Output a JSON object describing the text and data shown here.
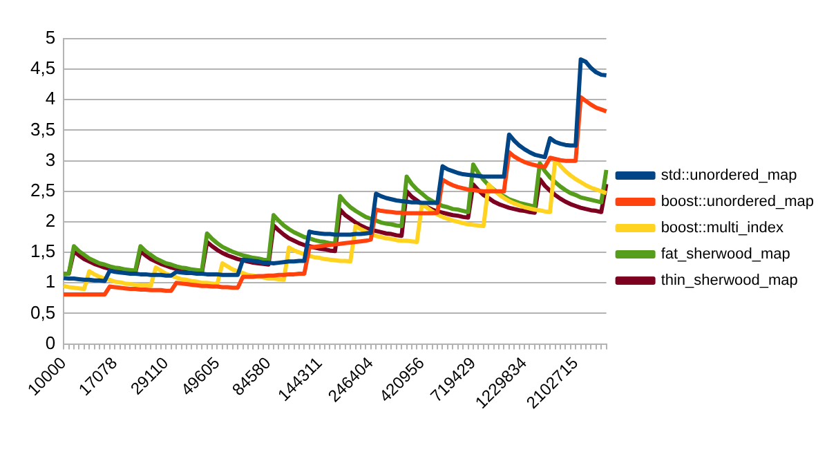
{
  "chart_data": {
    "type": "line",
    "categories": [
      "10000",
      null,
      null,
      null,
      null,
      null,
      null,
      null,
      null,
      null,
      "17078",
      null,
      null,
      null,
      null,
      null,
      null,
      null,
      null,
      null,
      "29110",
      null,
      null,
      null,
      null,
      null,
      null,
      null,
      null,
      null,
      "49605",
      null,
      null,
      null,
      null,
      null,
      null,
      null,
      null,
      null,
      "84580",
      null,
      null,
      null,
      null,
      null,
      null,
      null,
      null,
      null,
      "144311",
      null,
      null,
      null,
      null,
      null,
      null,
      null,
      null,
      null,
      "246404",
      null,
      null,
      null,
      null,
      null,
      null,
      null,
      null,
      null,
      "420956",
      null,
      null,
      null,
      null,
      null,
      null,
      null,
      null,
      null,
      "719429",
      null,
      null,
      null,
      null,
      null,
      null,
      null,
      null,
      null,
      "1229834",
      null,
      null,
      null,
      null,
      null,
      null,
      null,
      null,
      null,
      "2102715",
      null,
      null,
      null,
      null,
      null,
      null
    ],
    "series": [
      {
        "name": "std::unordered_map",
        "color": "#004586",
        "values": [
          1.08,
          1.07,
          1.07,
          1.06,
          1.05,
          1.05,
          1.04,
          1.04,
          1.03,
          1.2,
          1.18,
          1.17,
          1.16,
          1.15,
          1.15,
          1.14,
          1.14,
          1.13,
          1.13,
          1.13,
          1.12,
          1.12,
          1.18,
          1.17,
          1.16,
          1.16,
          1.15,
          1.15,
          1.14,
          1.14,
          1.14,
          1.13,
          1.13,
          1.13,
          1.13,
          1.38,
          1.37,
          1.36,
          1.35,
          1.33,
          1.33,
          1.32,
          1.33,
          1.34,
          1.35,
          1.35,
          1.36,
          1.36,
          1.84,
          1.82,
          1.81,
          1.8,
          1.8,
          1.79,
          1.79,
          1.79,
          1.79,
          1.8,
          1.8,
          1.81,
          1.82,
          2.46,
          2.42,
          2.39,
          2.37,
          2.35,
          2.34,
          2.33,
          2.32,
          2.32,
          2.31,
          2.31,
          2.31,
          2.31,
          2.91,
          2.86,
          2.83,
          2.8,
          2.78,
          2.77,
          2.76,
          2.75,
          2.74,
          2.74,
          2.74,
          2.74,
          2.74,
          3.43,
          3.33,
          3.25,
          3.19,
          3.14,
          3.1,
          3.08,
          3.06,
          3.37,
          3.31,
          3.28,
          3.26,
          3.25,
          3.25,
          4.66,
          4.62,
          4.52,
          4.45,
          4.41,
          4.4
        ]
      },
      {
        "name": "boost::unordered_map",
        "color": "#ff420e",
        "values": [
          0.81,
          0.81,
          0.81,
          0.81,
          0.81,
          0.81,
          0.81,
          0.81,
          0.81,
          0.94,
          0.93,
          0.92,
          0.91,
          0.9,
          0.9,
          0.89,
          0.89,
          0.88,
          0.88,
          0.88,
          0.87,
          0.87,
          1.0,
          0.99,
          0.98,
          0.97,
          0.96,
          0.95,
          0.95,
          0.94,
          0.94,
          0.93,
          0.93,
          0.92,
          0.92,
          1.1,
          1.1,
          1.1,
          1.11,
          1.11,
          1.12,
          1.12,
          1.13,
          1.13,
          1.14,
          1.14,
          1.15,
          1.15,
          1.58,
          1.59,
          1.6,
          1.61,
          1.62,
          1.63,
          1.64,
          1.65,
          1.66,
          1.67,
          1.68,
          1.69,
          1.71,
          2.2,
          2.18,
          2.17,
          2.16,
          2.15,
          2.15,
          2.14,
          2.14,
          2.14,
          2.14,
          2.14,
          2.14,
          2.15,
          2.69,
          2.64,
          2.6,
          2.57,
          2.55,
          2.53,
          2.52,
          2.51,
          2.5,
          2.5,
          2.5,
          2.5,
          2.5,
          3.14,
          3.07,
          3.02,
          2.98,
          2.95,
          2.93,
          2.91,
          2.9,
          3.05,
          3.03,
          3.01,
          3.0,
          3.0,
          3.0,
          4.04,
          3.98,
          3.92,
          3.87,
          3.84,
          3.81
        ]
      },
      {
        "name": "boost::multi_index",
        "color": "#ffd320",
        "values": [
          0.95,
          0.93,
          0.92,
          0.91,
          0.9,
          1.19,
          1.14,
          1.1,
          1.07,
          1.05,
          1.02,
          1.01,
          0.99,
          0.98,
          0.97,
          0.96,
          0.96,
          0.95,
          1.25,
          1.2,
          1.15,
          1.12,
          1.09,
          1.06,
          1.05,
          1.03,
          1.02,
          1.0,
          1.0,
          0.99,
          0.98,
          1.32,
          1.27,
          1.22,
          1.19,
          1.16,
          1.13,
          1.12,
          1.1,
          1.09,
          1.07,
          1.07,
          1.06,
          1.05,
          1.58,
          1.53,
          1.5,
          1.47,
          1.44,
          1.42,
          1.41,
          1.39,
          1.38,
          1.37,
          1.36,
          1.36,
          1.35,
          1.93,
          1.88,
          1.84,
          1.8,
          1.77,
          1.75,
          1.73,
          1.72,
          1.7,
          1.69,
          1.69,
          1.68,
          1.67,
          2.3,
          2.23,
          2.17,
          2.12,
          2.08,
          2.05,
          2.02,
          2.0,
          1.98,
          1.96,
          1.95,
          1.94,
          1.93,
          2.61,
          2.52,
          2.45,
          2.39,
          2.34,
          2.3,
          2.27,
          2.24,
          2.22,
          2.2,
          2.19,
          2.17,
          2.16,
          3.02,
          2.92,
          2.83,
          2.76,
          2.7,
          2.65,
          2.6,
          2.56,
          2.53,
          2.5,
          2.47
        ]
      },
      {
        "name": "fat_sherwood_map",
        "color": "#579d1c",
        "values": [
          1.15,
          1.15,
          1.6,
          1.52,
          1.46,
          1.4,
          1.36,
          1.32,
          1.3,
          1.27,
          1.25,
          1.24,
          1.22,
          1.21,
          1.2,
          1.6,
          1.52,
          1.46,
          1.4,
          1.36,
          1.32,
          1.3,
          1.27,
          1.25,
          1.24,
          1.22,
          1.21,
          1.2,
          1.81,
          1.72,
          1.65,
          1.59,
          1.55,
          1.51,
          1.48,
          1.45,
          1.43,
          1.41,
          1.4,
          1.38,
          1.37,
          2.11,
          2.02,
          1.94,
          1.88,
          1.83,
          1.79,
          1.75,
          1.73,
          1.7,
          1.68,
          1.67,
          1.65,
          1.64,
          2.42,
          2.32,
          2.24,
          2.18,
          2.13,
          2.08,
          2.05,
          2.02,
          1.99,
          1.97,
          1.96,
          1.94,
          1.93,
          2.74,
          2.62,
          2.53,
          2.46,
          2.39,
          2.34,
          2.3,
          2.26,
          2.24,
          2.21,
          2.2,
          2.18,
          2.16,
          2.94,
          2.8,
          2.69,
          2.6,
          2.53,
          2.46,
          2.42,
          2.37,
          2.34,
          2.31,
          2.29,
          2.27,
          2.25,
          2.96,
          2.83,
          2.73,
          2.65,
          2.58,
          2.52,
          2.47,
          2.44,
          2.4,
          2.38,
          2.36,
          2.34,
          2.32,
          2.85
        ]
      },
      {
        "name": "thin_sherwood_map",
        "color": "#7e0021",
        "values": [
          1.15,
          1.15,
          1.52,
          1.45,
          1.39,
          1.35,
          1.31,
          1.28,
          1.25,
          1.23,
          1.22,
          1.2,
          1.19,
          1.18,
          1.17,
          1.52,
          1.45,
          1.39,
          1.35,
          1.31,
          1.28,
          1.25,
          1.23,
          1.22,
          1.2,
          1.19,
          1.18,
          1.17,
          1.67,
          1.6,
          1.54,
          1.49,
          1.45,
          1.42,
          1.39,
          1.37,
          1.35,
          1.33,
          1.32,
          1.31,
          1.3,
          1.94,
          1.86,
          1.79,
          1.73,
          1.69,
          1.65,
          1.62,
          1.6,
          1.58,
          1.56,
          1.55,
          1.53,
          1.52,
          2.2,
          2.11,
          2.05,
          1.99,
          1.94,
          1.9,
          1.87,
          1.85,
          1.83,
          1.81,
          1.8,
          1.78,
          1.77,
          2.5,
          2.41,
          2.35,
          2.29,
          2.24,
          2.2,
          2.17,
          2.15,
          2.13,
          2.11,
          2.1,
          2.08,
          2.07,
          2.61,
          2.52,
          2.44,
          2.39,
          2.33,
          2.29,
          2.26,
          2.23,
          2.21,
          2.19,
          2.18,
          2.16,
          2.15,
          2.7,
          2.59,
          2.51,
          2.44,
          2.38,
          2.33,
          2.29,
          2.26,
          2.23,
          2.21,
          2.19,
          2.18,
          2.16,
          2.62
        ]
      }
    ],
    "ylim": [
      0,
      5
    ],
    "yticks": [
      0,
      {
        "value": 0.5,
        "label": "0,5"
      },
      1,
      {
        "value": 1.5,
        "label": "1,5"
      },
      2,
      {
        "value": 2.5,
        "label": "2,5"
      },
      3,
      {
        "value": 3.5,
        "label": "3,5"
      },
      4,
      {
        "value": 4.5,
        "label": "4,5"
      },
      5
    ],
    "grid": "y",
    "legend": "right",
    "marker": "none",
    "line_style": "solid"
  }
}
